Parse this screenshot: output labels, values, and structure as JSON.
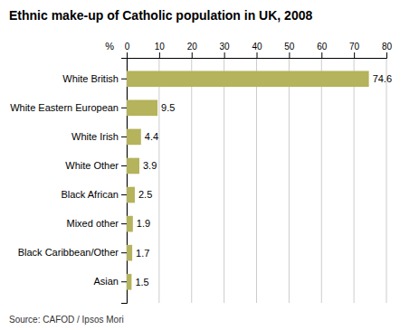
{
  "chart_data": {
    "type": "bar",
    "orientation": "horizontal",
    "title": "Ethnic make-up of Catholic population in UK, 2008",
    "xlabel": "%",
    "categories": [
      "Asian",
      "Black Caribbean/Other",
      "Mixed other",
      "Black African",
      "White Other",
      "White Irish",
      "White Eastern European",
      "White British"
    ],
    "values": [
      1.5,
      1.7,
      1.9,
      2.5,
      3.9,
      4.4,
      9.5,
      74.6
    ],
    "color": "#b5b35c",
    "xlim": [
      0,
      80
    ],
    "xticks": [
      0,
      10,
      20,
      30,
      40,
      50,
      60,
      70,
      80
    ],
    "grid": true,
    "data_labels": true,
    "annotations": [
      "Source: CAFOD / Ipsos Mori"
    ]
  }
}
